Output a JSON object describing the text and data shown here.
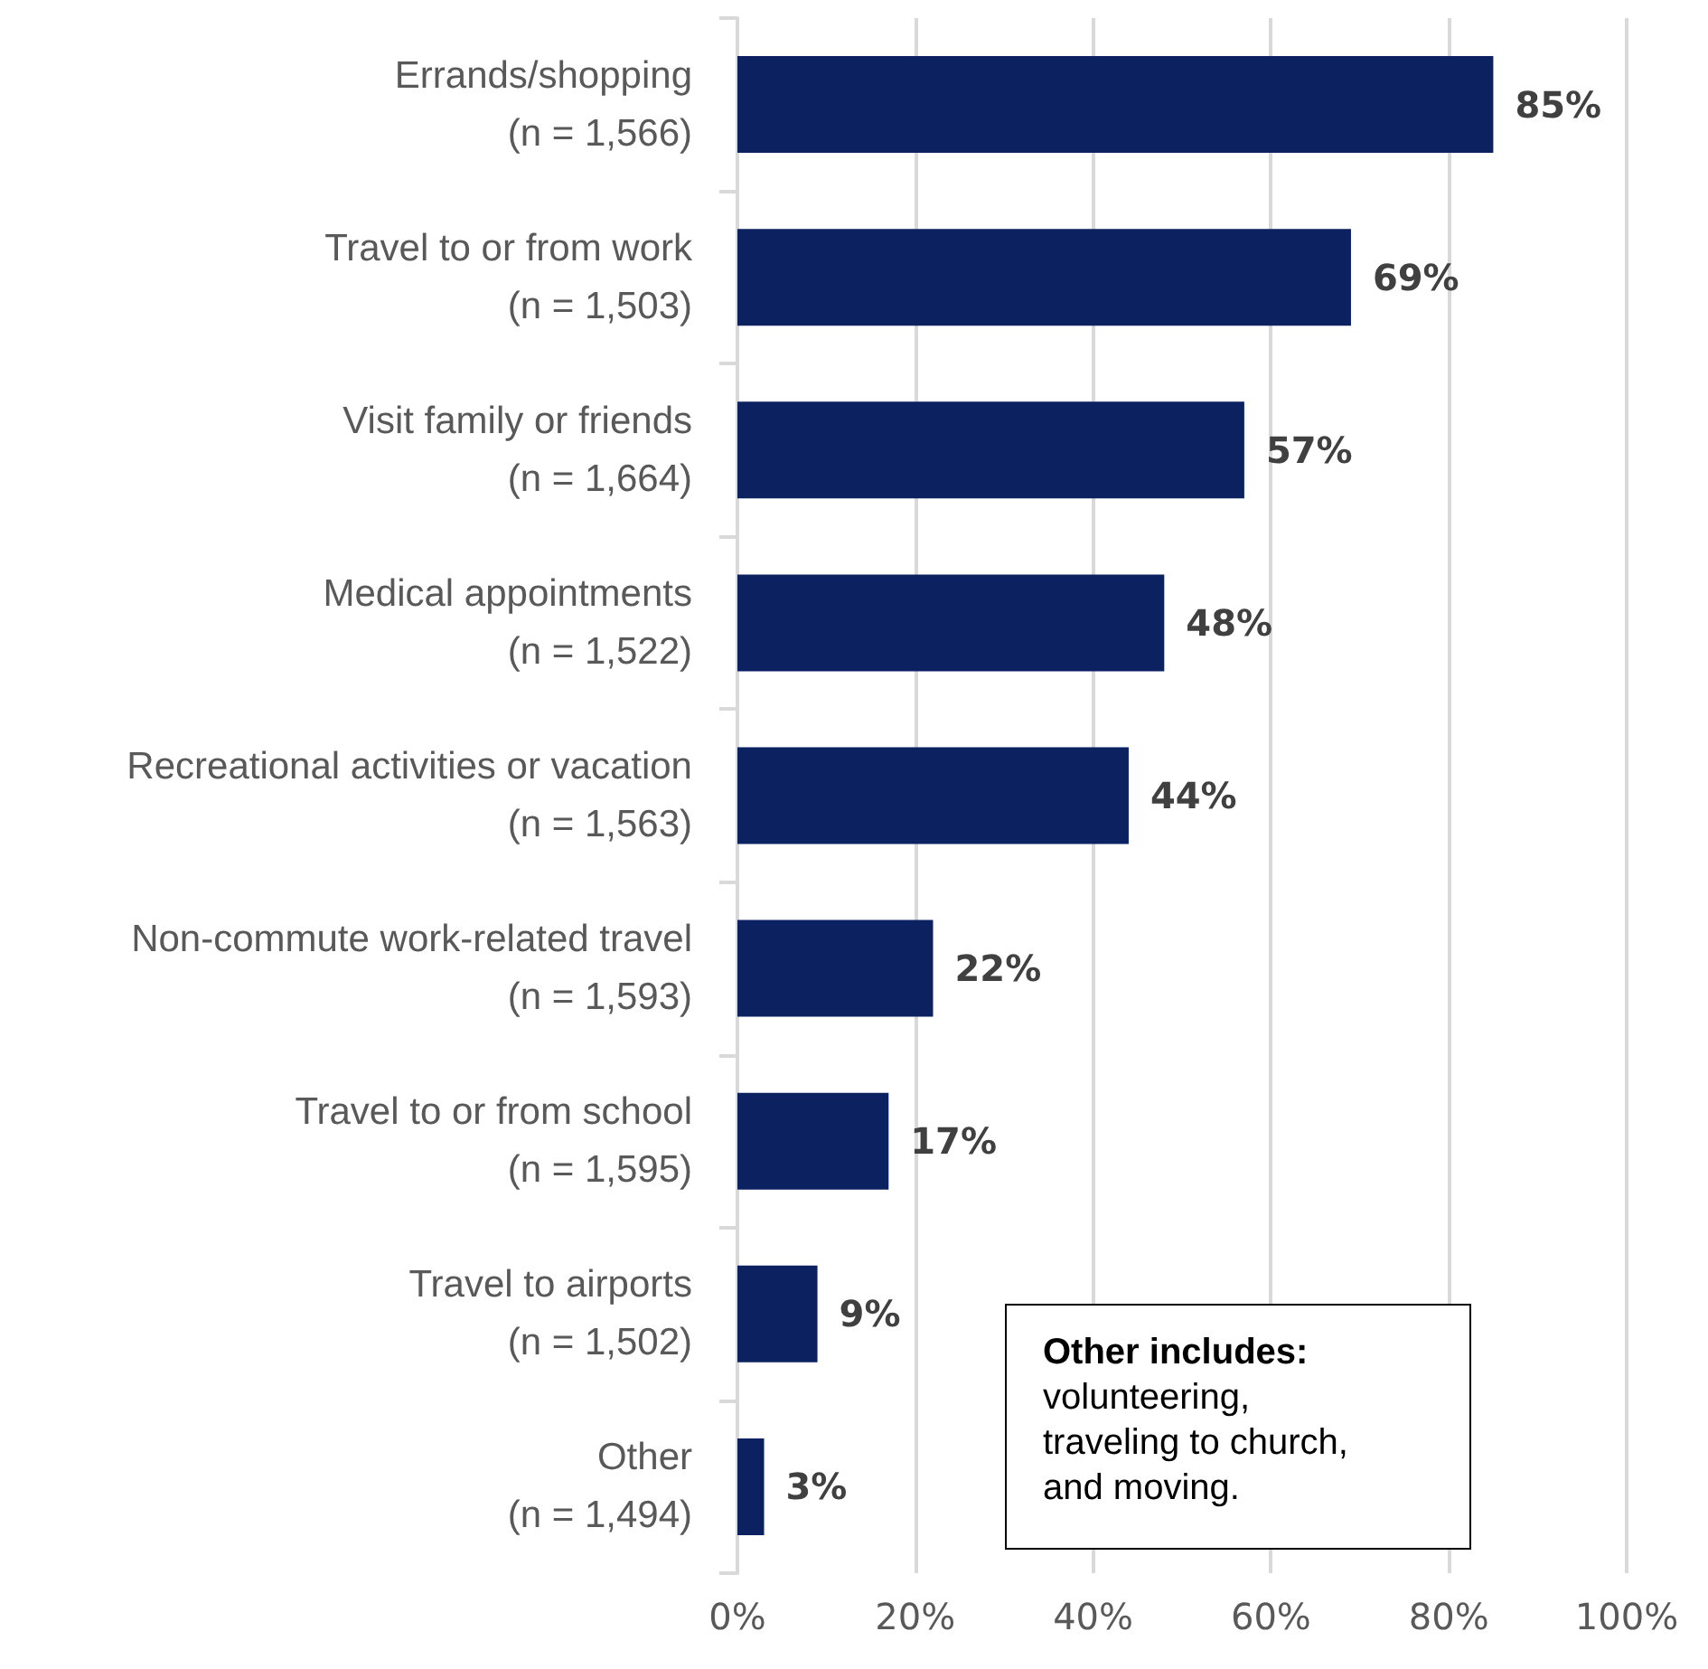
{
  "chart_data": {
    "type": "bar",
    "orientation": "horizontal",
    "categories": [
      "Errands/shopping\n(n = 1,566)",
      "Travel to or from work\n(n = 1,503)",
      "Visit family or friends\n(n = 1,664)",
      "Medical appointments\n(n = 1,522)",
      "Recreational activities or vacation\n(n = 1,563)",
      "Non-commute work-related travel\n(n = 1,593)",
      "Travel to or from school\n(n = 1,595)",
      "Travel to airports\n(n = 1,502)",
      "Other\n(n = 1,494)"
    ],
    "values": [
      85,
      69,
      57,
      48,
      44,
      22,
      17,
      9,
      3
    ],
    "value_labels": [
      "85%",
      "69%",
      "57%",
      "48%",
      "44%",
      "22%",
      "17%",
      "9%",
      "3%"
    ],
    "color": "#0c2160",
    "xlim": [
      0,
      100
    ],
    "xticks": [
      {
        "value": 0,
        "label": "0%"
      },
      {
        "value": 20,
        "label": "20%"
      },
      {
        "value": 40,
        "label": "40%"
      },
      {
        "value": 60,
        "label": "60%"
      },
      {
        "value": 80,
        "label": "80%"
      },
      {
        "value": 100,
        "label": "100%"
      }
    ],
    "grid": "x",
    "annotations": [
      "Other includes:",
      "volunteering,\ntraveling to church,\nand moving."
    ]
  }
}
